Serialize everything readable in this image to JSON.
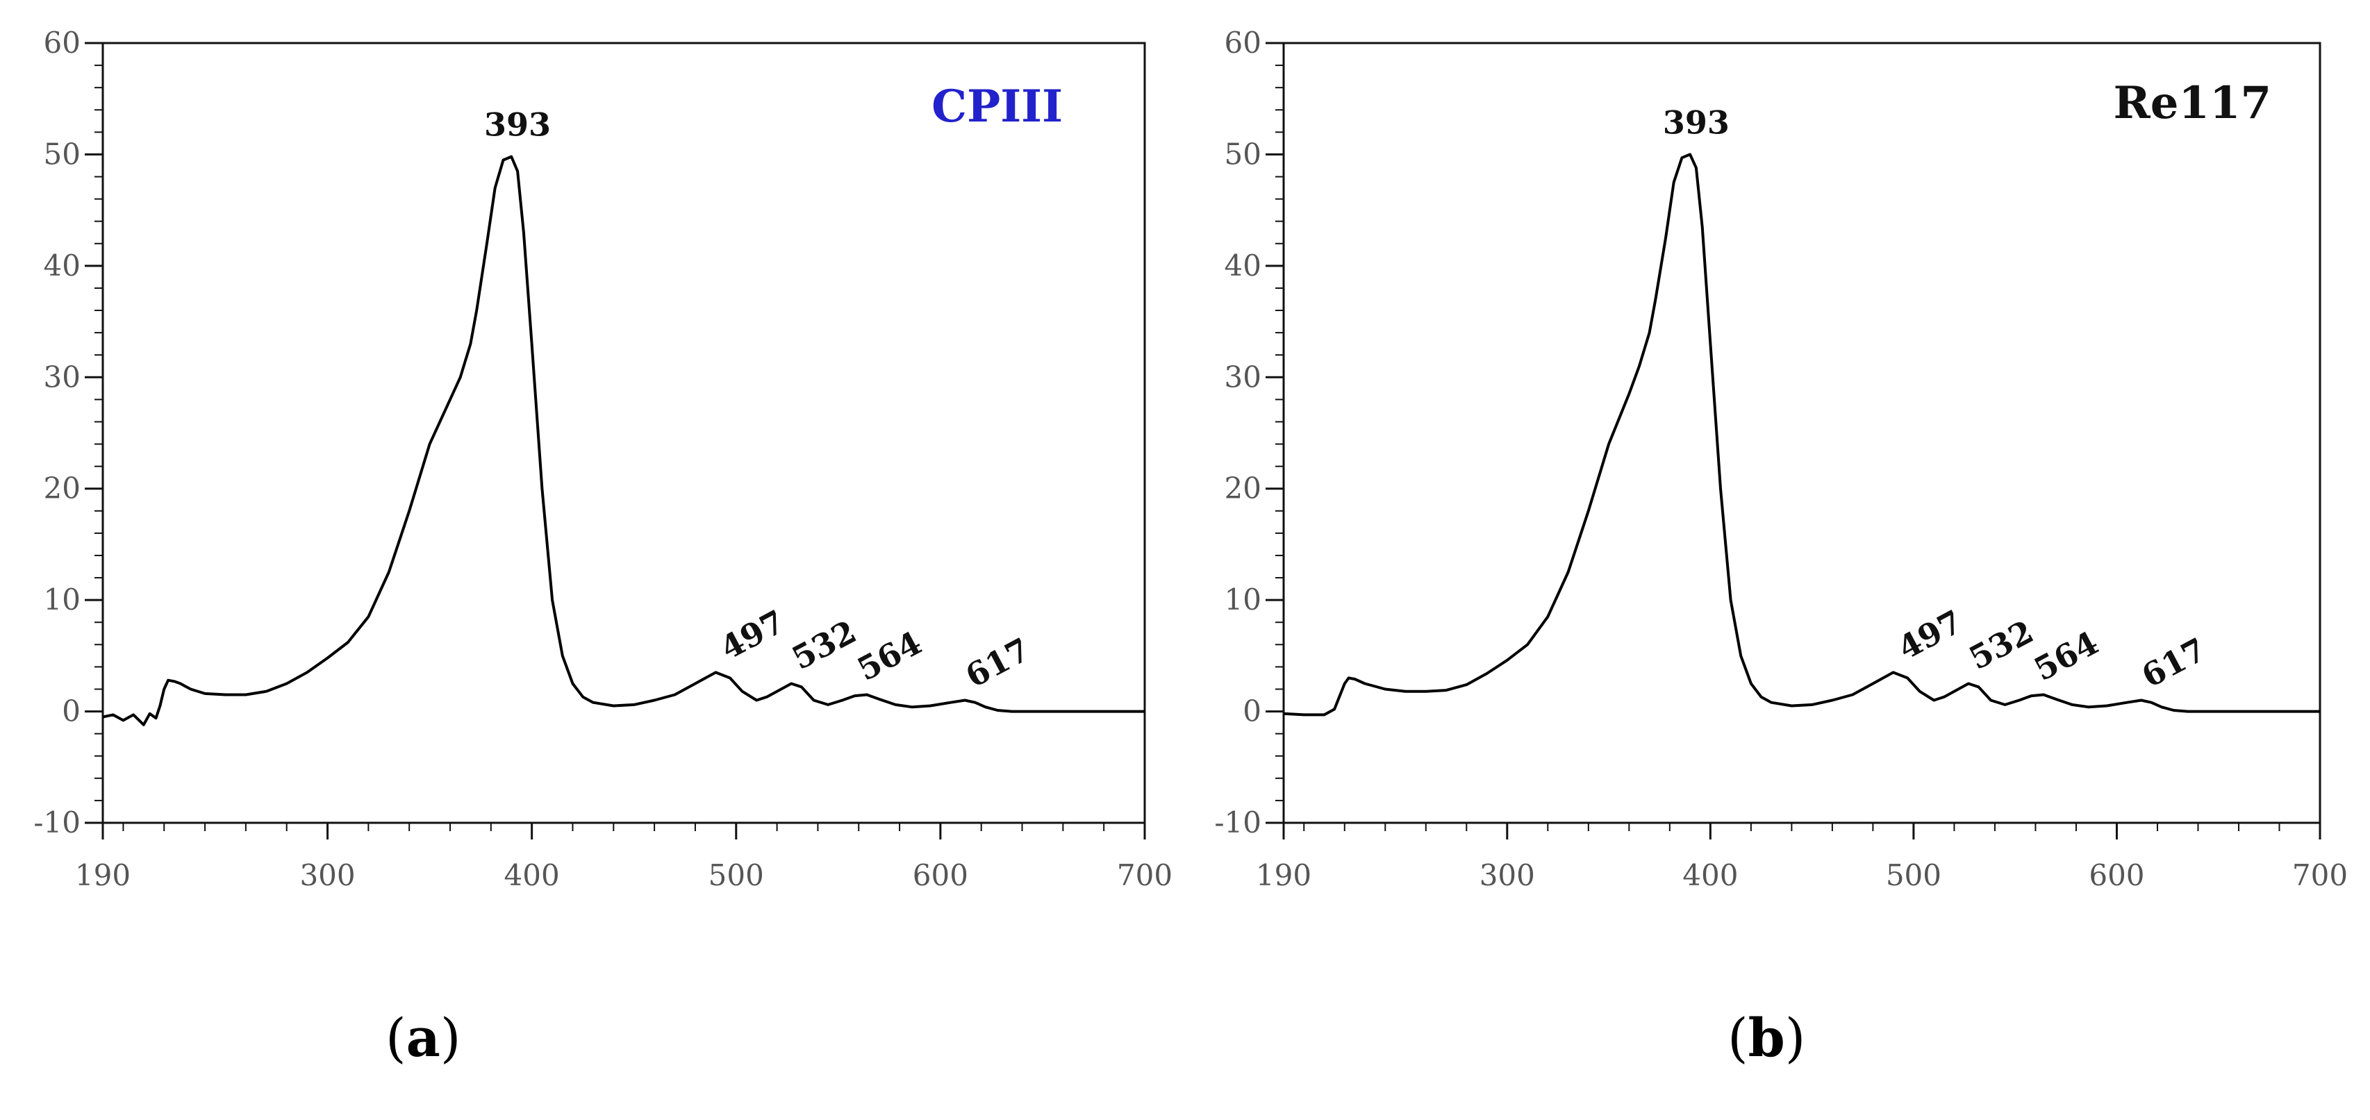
{
  "chart_data": [
    {
      "type": "line",
      "panel_label": "a",
      "title": "CPIII",
      "title_color": "#2222cc",
      "xlabel": "",
      "ylabel": "",
      "xlim": [
        190,
        700
      ],
      "ylim": [
        -10,
        60
      ],
      "x_ticks": [
        190,
        300,
        400,
        500,
        600,
        700
      ],
      "y_ticks": [
        -10,
        0,
        10,
        20,
        30,
        40,
        50,
        60
      ],
      "grid": false,
      "annotations": [
        {
          "text": "393",
          "x": 393,
          "y": 49.8,
          "rotate": 0
        },
        {
          "text": "497",
          "x": 497,
          "y": 3.5,
          "rotate": -28
        },
        {
          "text": "532",
          "x": 532,
          "y": 2.6,
          "rotate": -28
        },
        {
          "text": "564",
          "x": 564,
          "y": 1.6,
          "rotate": -28
        },
        {
          "text": "617",
          "x": 617,
          "y": 1.0,
          "rotate": -28
        }
      ],
      "series": [
        {
          "color": "#000000",
          "x": [
            190,
            195,
            200,
            205,
            210,
            213,
            216,
            218,
            220,
            222,
            225,
            228,
            230,
            233,
            240,
            250,
            260,
            270,
            280,
            290,
            300,
            310,
            320,
            330,
            340,
            350,
            360,
            365,
            370,
            373,
            378,
            382,
            386,
            390,
            393,
            396,
            400,
            405,
            410,
            415,
            420,
            425,
            430,
            440,
            450,
            460,
            470,
            480,
            490,
            497,
            503,
            510,
            515,
            520,
            527,
            532,
            538,
            545,
            552,
            558,
            564,
            570,
            578,
            586,
            595,
            605,
            612,
            617,
            622,
            628,
            635,
            645,
            660,
            680,
            700
          ],
          "y": [
            -0.5,
            -0.3,
            -0.8,
            -0.3,
            -1.2,
            -0.2,
            -0.6,
            0.5,
            2.0,
            2.8,
            2.7,
            2.5,
            2.3,
            2.0,
            1.6,
            1.5,
            1.5,
            1.8,
            2.5,
            3.5,
            4.8,
            6.2,
            8.5,
            12.5,
            18.0,
            24.0,
            28.0,
            30.0,
            33.0,
            36.0,
            42.0,
            47.0,
            49.5,
            49.8,
            48.5,
            43.0,
            33.0,
            20.0,
            10.0,
            5.0,
            2.5,
            1.3,
            0.8,
            0.5,
            0.6,
            1.0,
            1.5,
            2.5,
            3.5,
            3.0,
            1.8,
            1.0,
            1.3,
            1.8,
            2.5,
            2.2,
            1.0,
            0.6,
            1.0,
            1.4,
            1.5,
            1.1,
            0.6,
            0.4,
            0.5,
            0.8,
            1.0,
            0.8,
            0.4,
            0.1,
            0.0,
            0.0,
            0.0,
            0.0,
            0.0
          ]
        }
      ]
    },
    {
      "type": "line",
      "panel_label": "b",
      "title": "Re117",
      "title_color": "#111111",
      "xlabel": "",
      "ylabel": "",
      "xlim": [
        190,
        700
      ],
      "ylim": [
        -10,
        60
      ],
      "x_ticks": [
        190,
        300,
        400,
        500,
        600,
        700
      ],
      "y_ticks": [
        -10,
        0,
        10,
        20,
        30,
        40,
        50,
        60
      ],
      "grid": false,
      "annotations": [
        {
          "text": "393",
          "x": 393,
          "y": 50,
          "rotate": 0
        },
        {
          "text": "497",
          "x": 497,
          "y": 3.5,
          "rotate": -28
        },
        {
          "text": "532",
          "x": 532,
          "y": 2.6,
          "rotate": -28
        },
        {
          "text": "564",
          "x": 564,
          "y": 1.6,
          "rotate": -28
        },
        {
          "text": "617",
          "x": 617,
          "y": 1.0,
          "rotate": -28
        }
      ],
      "series": [
        {
          "color": "#000000",
          "x": [
            190,
            200,
            210,
            215,
            220,
            222,
            225,
            230,
            240,
            250,
            260,
            270,
            280,
            290,
            300,
            310,
            320,
            330,
            340,
            350,
            360,
            365,
            370,
            373,
            378,
            382,
            386,
            390,
            393,
            396,
            400,
            405,
            410,
            415,
            420,
            425,
            430,
            440,
            450,
            460,
            470,
            480,
            490,
            497,
            503,
            510,
            515,
            520,
            527,
            532,
            538,
            545,
            552,
            558,
            564,
            570,
            578,
            586,
            595,
            605,
            612,
            617,
            622,
            628,
            635,
            645,
            660,
            680,
            700
          ],
          "y": [
            -0.2,
            -0.3,
            -0.3,
            0.2,
            2.5,
            3.0,
            2.9,
            2.5,
            2.0,
            1.8,
            1.8,
            1.9,
            2.4,
            3.4,
            4.6,
            6.0,
            8.5,
            12.5,
            18.0,
            24.0,
            28.5,
            31.0,
            34.0,
            37.0,
            42.5,
            47.5,
            49.7,
            50.0,
            48.8,
            43.5,
            33.0,
            20.0,
            10.0,
            5.0,
            2.5,
            1.3,
            0.8,
            0.5,
            0.6,
            1.0,
            1.5,
            2.5,
            3.5,
            3.0,
            1.8,
            1.0,
            1.3,
            1.8,
            2.5,
            2.2,
            1.0,
            0.6,
            1.0,
            1.4,
            1.5,
            1.1,
            0.6,
            0.4,
            0.5,
            0.8,
            1.0,
            0.8,
            0.4,
            0.1,
            0.0,
            0.0,
            0.0,
            0.0,
            0.0
          ]
        }
      ]
    }
  ]
}
